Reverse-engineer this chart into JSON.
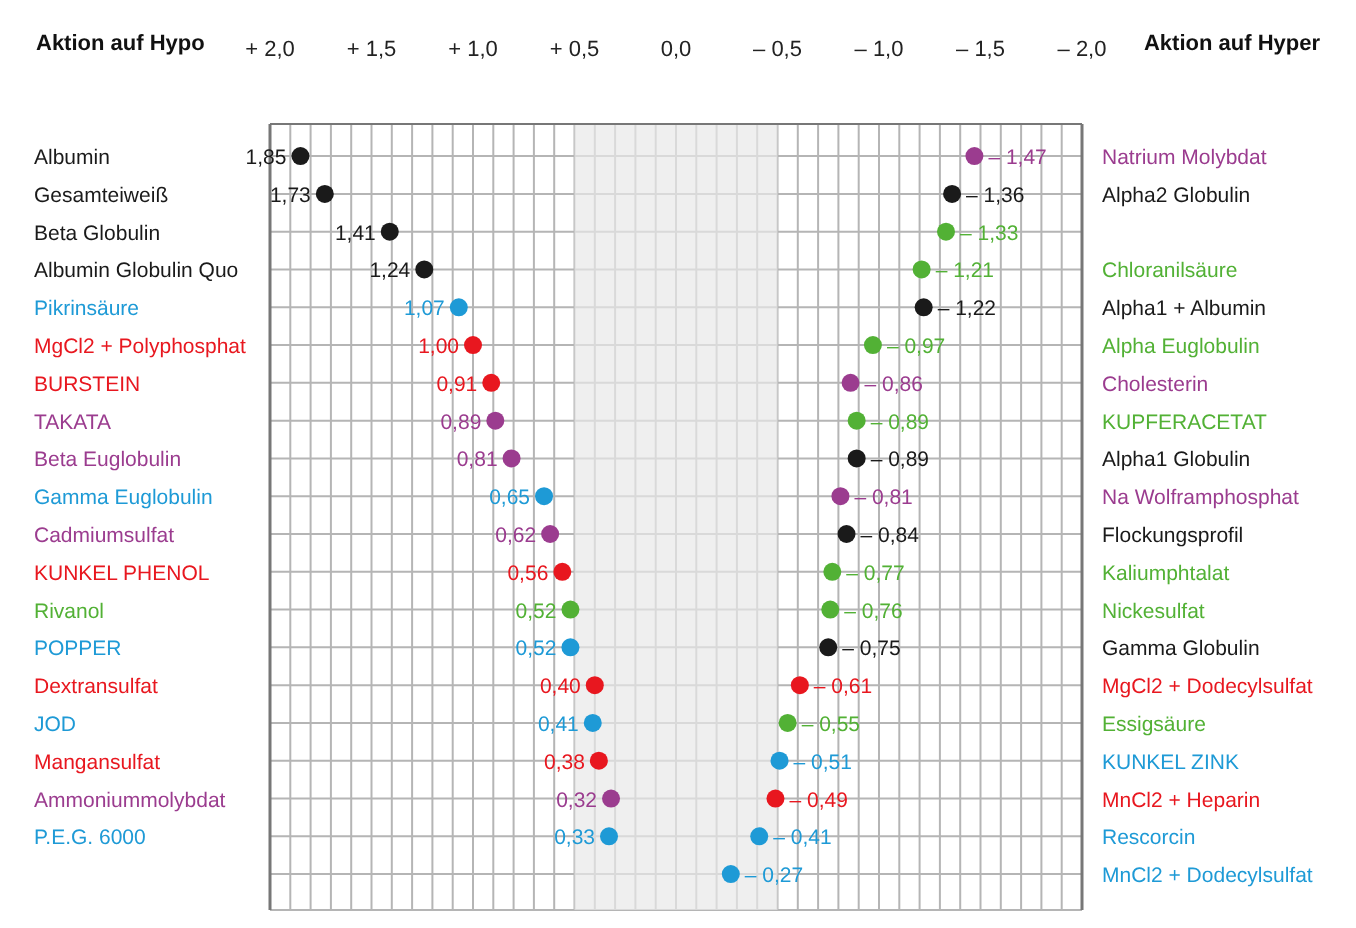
{
  "chart_data": {
    "type": "scatter",
    "orientation": "horizontal",
    "grid": true,
    "marker": "circle",
    "annotations": [
      "Aktion auf Hypo",
      "Aktion auf Hyper"
    ],
    "categories": [
      "Albumin",
      "Gesamteiweiß",
      "Beta Globulin",
      "Albumin Globulin Quo",
      "Pikrinsäure",
      "MgCl2 + Polyphosphat",
      "BURSTEIN",
      "TAKATA",
      "Beta Euglobulin",
      "Gamma Euglobulin",
      "Cadmiumsulfat",
      "KUNKEL PHENOL",
      "Rivanol",
      "POPPER",
      "Dextransulfat",
      "JOD",
      "Mangansulfat",
      "Ammoniummolybdat",
      "P.E.G. 6000",
      null
    ],
    "y2_categories": [
      "Natrium Molybdat",
      "Alpha2 Globulin",
      null,
      "Chloranilsäure",
      "Alpha1 + Albumin",
      "Alpha Euglobulin",
      "Cholesterin",
      "KUPFERACETAT",
      "Alpha1 Globulin",
      "Na Wolframphosphat",
      "Flockungsprofil",
      "Kaliumphtalat",
      "Nickesulfat",
      "Gamma Globulin",
      "MgCl2 + Dodecylsulfat",
      "Essigsäure",
      "KUNKEL ZINK",
      "MnCl2 + Heparin",
      "Rescorcin",
      "MnCl2 + Dodecylsulfat"
    ],
    "series": [
      {
        "values": [
          1.85,
          1.73,
          1.41,
          1.24,
          1.07,
          1.0,
          0.91,
          0.89,
          0.81,
          0.65,
          0.62,
          0.56,
          0.52,
          0.52,
          0.4,
          0.41,
          0.38,
          0.32,
          0.33,
          null
        ],
        "colors": [
          "#1a1a1a",
          "#1a1a1a",
          "#1a1a1a",
          "#1a1a1a",
          "#1e9ad6",
          "#e8171f",
          "#e8171f",
          "#9b3c8f",
          "#9b3c8f",
          "#1e9ad6",
          "#9b3c8f",
          "#e8171f",
          "#52b135",
          "#1e9ad6",
          "#e8171f",
          "#1e9ad6",
          "#e8171f",
          "#9b3c8f",
          "#1e9ad6",
          "#1a1a1a"
        ],
        "value_labels": [
          "1,85",
          "1,73",
          "1,41",
          "1,24",
          "1,07",
          "1,00",
          "0,91",
          "0,89",
          "0,81",
          "0,65",
          "0,62",
          "0,56",
          "0,52",
          "0,52",
          "0,40",
          "0,41",
          "0,38",
          "0,32",
          "0,33",
          null
        ]
      },
      {
        "values": [
          -1.47,
          -1.36,
          -1.33,
          -1.21,
          -1.22,
          -0.97,
          -0.86,
          -0.89,
          -0.89,
          -0.81,
          -0.84,
          -0.77,
          -0.76,
          -0.75,
          -0.61,
          -0.55,
          -0.51,
          -0.49,
          -0.41,
          -0.27
        ],
        "colors": [
          "#9b3c8f",
          "#1a1a1a",
          "#52b135",
          "#52b135",
          "#1a1a1a",
          "#52b135",
          "#9b3c8f",
          "#52b135",
          "#1a1a1a",
          "#9b3c8f",
          "#1a1a1a",
          "#52b135",
          "#52b135",
          "#1a1a1a",
          "#e8171f",
          "#52b135",
          "#1e9ad6",
          "#e8171f",
          "#1e9ad6",
          "#1e9ad6"
        ],
        "value_labels": [
          "– 1,47",
          "– 1,36",
          "– 1,33",
          "– 1,21",
          "– 1,22",
          "– 0,97",
          "– 0,86",
          "– 0,89",
          "– 0,89",
          "– 0,81",
          "– 0,84",
          "– 0,77",
          "– 0,76",
          "– 0,75",
          "– 0,61",
          "– 0,55",
          "– 0,51",
          "– 0,49",
          "– 0,41",
          "– 0,27"
        ]
      }
    ],
    "xlim": [
      2.0,
      -2.0
    ],
    "xticks": [
      {
        "value": 2.0,
        "label": "+ 2,0"
      },
      {
        "value": 1.9,
        "label": null
      },
      {
        "value": 1.8,
        "label": null
      },
      {
        "value": 1.7,
        "label": null
      },
      {
        "value": 1.6,
        "label": null
      },
      {
        "value": 1.5,
        "label": "+ 1,5"
      },
      {
        "value": 1.4,
        "label": null
      },
      {
        "value": 1.3,
        "label": null
      },
      {
        "value": 1.2,
        "label": null
      },
      {
        "value": 1.1,
        "label": null
      },
      {
        "value": 1.0,
        "label": "+ 1,0"
      },
      {
        "value": 0.9,
        "label": null
      },
      {
        "value": 0.8,
        "label": null
      },
      {
        "value": 0.7,
        "label": null
      },
      {
        "value": 0.6,
        "label": null
      },
      {
        "value": 0.5,
        "label": "+ 0,5"
      },
      {
        "value": 0.4,
        "label": null
      },
      {
        "value": 0.3,
        "label": null
      },
      {
        "value": 0.2,
        "label": null
      },
      {
        "value": 0.1,
        "label": null
      },
      {
        "value": 0,
        "label": "0,0"
      },
      {
        "value": -0.1,
        "label": null
      },
      {
        "value": -0.2,
        "label": null
      },
      {
        "value": -0.3,
        "label": null
      },
      {
        "value": -0.4,
        "label": null
      },
      {
        "value": -0.5,
        "label": "– 0,5"
      },
      {
        "value": -0.6,
        "label": null
      },
      {
        "value": -0.7,
        "label": null
      },
      {
        "value": -0.8,
        "label": null
      },
      {
        "value": -0.9,
        "label": null
      },
      {
        "value": -1.0,
        "label": "– 1,0"
      },
      {
        "value": -1.1,
        "label": null
      },
      {
        "value": -1.2,
        "label": null
      },
      {
        "value": -1.3,
        "label": null
      },
      {
        "value": -1.4,
        "label": null
      },
      {
        "value": -1.5,
        "label": "– 1,5"
      },
      {
        "value": -1.6,
        "label": null
      },
      {
        "value": -1.7,
        "label": null
      },
      {
        "value": -1.8,
        "label": null
      },
      {
        "value": -1.9,
        "label": null
      },
      {
        "value": -2.0,
        "label": "– 2,0"
      }
    ],
    "bands": [
      {
        "axis": "x",
        "from": 0.5,
        "to": -0.5,
        "color": "#e8e8e8"
      }
    ]
  }
}
